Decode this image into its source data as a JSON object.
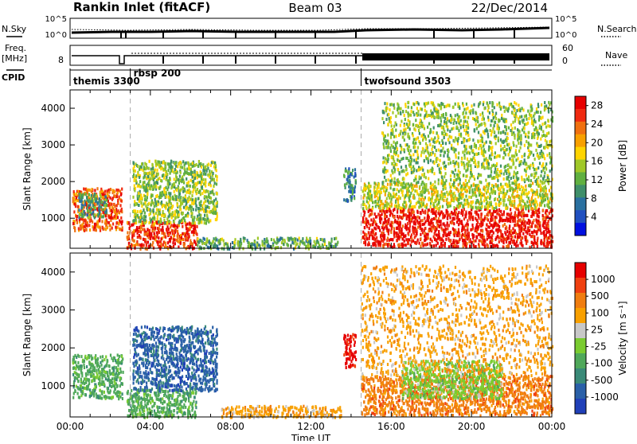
{
  "header": {
    "site": "Rankin Inlet (fitACF)",
    "beam": "Beam 03",
    "date": "22/Dec/2014"
  },
  "top_panels": {
    "nsky_label": "N.Sky",
    "nsearch_label": "N.Search",
    "freq_label_1": "Freq.",
    "freq_label_2": "[MHz]",
    "nave_label": "Nave",
    "cpid_label": "CPID",
    "nsky_ticks": [
      "10^5",
      "10^0"
    ],
    "nsearch_ticks": [
      "10^5",
      "10^0"
    ],
    "freq_ticks": [
      "8"
    ],
    "nave_ticks": [
      "60",
      "0"
    ],
    "cpid_entries": [
      {
        "label": "themis 3300",
        "start_hour": 0.0
      },
      {
        "label": "rbsp 200",
        "start_hour": 3.0
      },
      {
        "label": "twofsound 3503",
        "start_hour": 14.5
      }
    ]
  },
  "chart_data": [
    {
      "type": "heatmap",
      "name": "Power",
      "title": "",
      "xlabel": "",
      "ylabel": "Slant Range [km]",
      "xlim": [
        0,
        24
      ],
      "ylim": [
        180,
        4500
      ],
      "x_ticks": [],
      "y_ticks": [
        1000,
        2000,
        3000,
        4000
      ],
      "y_tick_labels": [
        "1000",
        "2000",
        "3000",
        "4000"
      ],
      "colorbar": {
        "label": "Power [dB]",
        "range": [
          0,
          30
        ],
        "ticks": [
          4,
          8,
          12,
          16,
          20,
          24,
          28
        ],
        "tick_labels": [
          "4",
          "8",
          "12",
          "16",
          "20",
          "24",
          "28"
        ],
        "colors": [
          "#0010e0",
          "#2050c0",
          "#2a70a0",
          "#3f8f6a",
          "#60b040",
          "#a0c828",
          "#ffd400",
          "#f8a000",
          "#f07010",
          "#f02a10",
          "#e60000"
        ]
      },
      "regions": [
        {
          "t0": 0.1,
          "t1": 2.6,
          "r0": 700,
          "r1": 1850,
          "level": 24
        },
        {
          "t0": 0.4,
          "t1": 1.8,
          "r0": 1050,
          "r1": 1700,
          "level": 10
        },
        {
          "t0": 2.8,
          "t1": 6.3,
          "r0": 200,
          "r1": 950,
          "level": 26
        },
        {
          "t0": 3.1,
          "t1": 7.3,
          "r0": 900,
          "r1": 2600,
          "level": 14
        },
        {
          "t0": 6.3,
          "t1": 13.3,
          "r0": 200,
          "r1": 500,
          "level": 12
        },
        {
          "t0": 13.6,
          "t1": 14.2,
          "r0": 1500,
          "r1": 2400,
          "level": 9
        },
        {
          "t0": 14.5,
          "t1": 24,
          "r0": 250,
          "r1": 1300,
          "level": 28
        },
        {
          "t0": 14.5,
          "t1": 24,
          "r0": 1300,
          "r1": 2000,
          "level": 16
        },
        {
          "t0": 15.5,
          "t1": 24,
          "r0": 2000,
          "r1": 4200,
          "level": 14
        }
      ]
    },
    {
      "type": "heatmap",
      "name": "Velocity",
      "title": "",
      "xlabel": "Time UT",
      "ylabel": "Slant Range [km]",
      "xlim": [
        0,
        24
      ],
      "ylim": [
        180,
        4500
      ],
      "x_ticks": [
        0,
        4,
        8,
        12,
        16,
        20,
        24
      ],
      "x_tick_labels": [
        "00:00",
        "04:00",
        "08:00",
        "12:00",
        "16:00",
        "20:00",
        "00:00"
      ],
      "y_ticks": [
        1000,
        2000,
        3000,
        4000
      ],
      "y_tick_labels": [
        "1000",
        "2000",
        "3000",
        "4000"
      ],
      "colorbar": {
        "label": "Velocity [m s⁻¹]",
        "tick_labels": [
          "1000",
          "500",
          "100",
          "25",
          "-25",
          "-100",
          "-500",
          "-1000"
        ],
        "colors": [
          "#2040b8",
          "#2a60a8",
          "#3a8a78",
          "#4fa85a",
          "#7acc30",
          "#c8c8c8",
          "#f8a000",
          "#f07d10",
          "#f04010",
          "#e60000"
        ]
      },
      "regions": [
        {
          "t0": 0.1,
          "t1": 2.6,
          "r0": 700,
          "r1": 1850,
          "level": 3
        },
        {
          "t0": 2.8,
          "t1": 6.3,
          "r0": 200,
          "r1": 950,
          "level": 3
        },
        {
          "t0": 3.1,
          "t1": 7.3,
          "r0": 900,
          "r1": 2600,
          "level": 1
        },
        {
          "t0": 7.5,
          "t1": 13.5,
          "r0": 200,
          "r1": 500,
          "level": 6
        },
        {
          "t0": 13.6,
          "t1": 14.2,
          "r0": 1500,
          "r1": 2400,
          "level": 9
        },
        {
          "t0": 14.5,
          "t1": 24,
          "r0": 250,
          "r1": 1300,
          "level": 7
        },
        {
          "t0": 16.5,
          "t1": 21.5,
          "r0": 700,
          "r1": 1700,
          "level": 4
        },
        {
          "t0": 14.5,
          "t1": 24,
          "r0": 1300,
          "r1": 4200,
          "level": 6
        }
      ]
    }
  ]
}
